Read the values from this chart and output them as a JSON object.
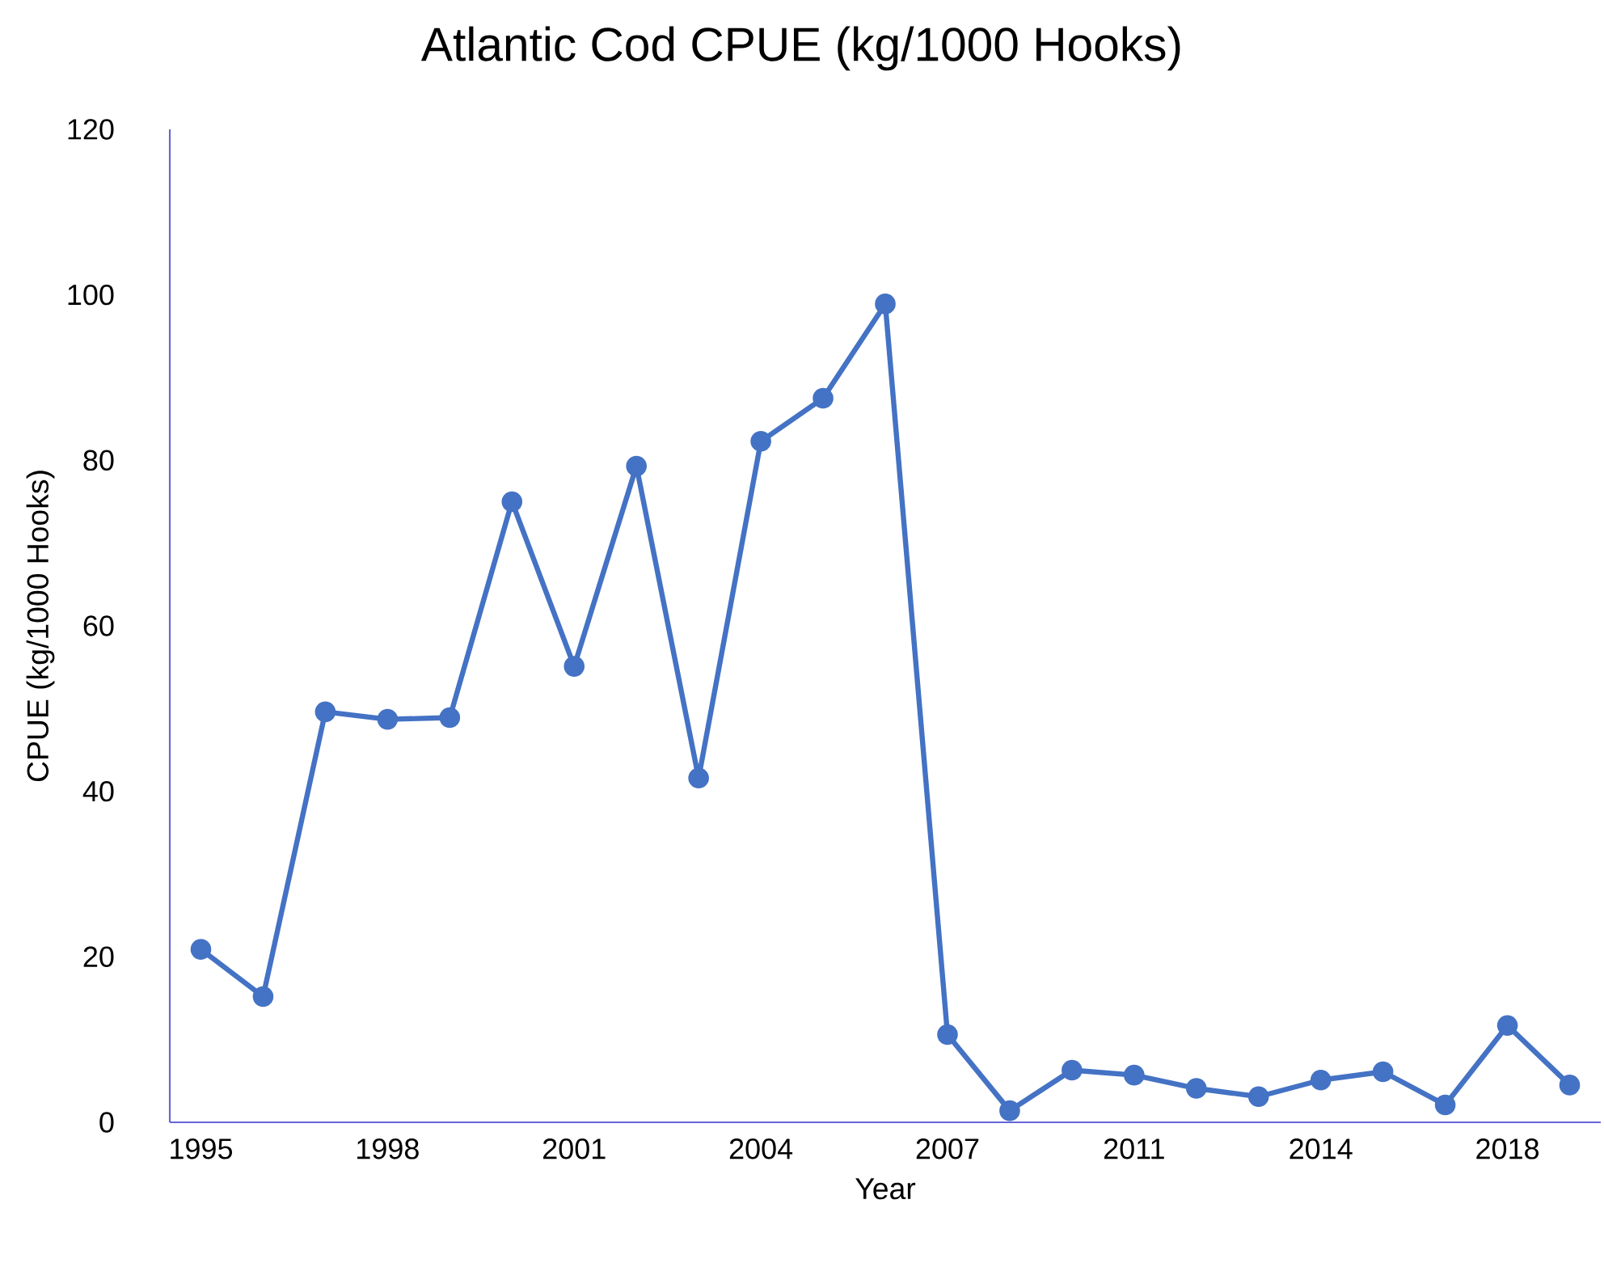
{
  "chart_data": {
    "type": "line",
    "title": "Atlantic Cod CPUE (kg/1000 Hooks)",
    "xlabel": "Year",
    "ylabel": "CPUE (kg/1000 Hooks)",
    "categories": [
      "1995",
      null,
      null,
      "1998",
      null,
      null,
      "2001",
      null,
      null,
      "2004",
      null,
      null,
      "2007",
      null,
      null,
      "2011",
      null,
      null,
      "2014",
      null,
      null,
      "2018",
      null
    ],
    "series": [
      {
        "color": "#4472c4",
        "values": [
          20.9,
          15.2,
          49.6,
          48.7,
          48.9,
          75.0,
          55.1,
          79.3,
          41.6,
          82.3,
          87.5,
          98.9,
          10.6,
          1.4,
          6.3,
          5.7,
          4.1,
          3.1,
          5.1,
          6.1,
          2.1,
          11.7,
          4.5
        ]
      }
    ],
    "ylim": [
      0,
      120
    ],
    "yticks": [
      0,
      20,
      40,
      60,
      80,
      100,
      120
    ],
    "marker": "circle",
    "line_style": "solid"
  }
}
